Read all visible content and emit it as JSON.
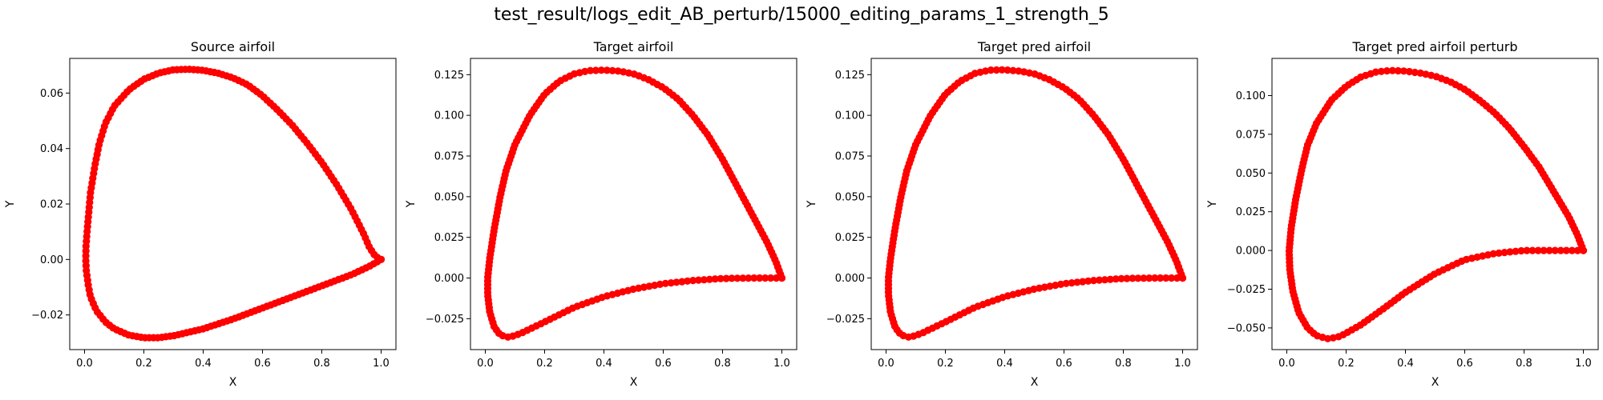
{
  "figure": {
    "suptitle": "test_result/logs_edit_AB_perturb/15000_editing_params_1_strength_5"
  },
  "style": {
    "marker_color": "#ff0000",
    "line_color": "#ff0000",
    "axes_color": "#000000"
  },
  "chart_data": [
    {
      "type": "scatter",
      "title": "Source airfoil",
      "xlabel": "X",
      "ylabel": "Y",
      "xlim": [
        -0.05,
        1.05
      ],
      "ylim": [
        -0.0325,
        0.0725
      ],
      "xticks": [
        0.0,
        0.2,
        0.4,
        0.6,
        0.8,
        1.0
      ],
      "xtick_labels": [
        "0.0",
        "0.2",
        "0.4",
        "0.6",
        "0.8",
        "1.0"
      ],
      "yticks": [
        -0.02,
        0.0,
        0.02,
        0.04,
        0.06
      ],
      "ytick_labels": [
        "−0.02",
        "0.00",
        "0.02",
        "0.04",
        "0.06"
      ],
      "grid": false,
      "series": [
        {
          "marker": "circle",
          "upper": [
            [
              1.0,
              0.0
            ],
            [
              0.98,
              0.0012
            ],
            [
              0.96,
              0.0045
            ],
            [
              0.94,
              0.0095
            ],
            [
              0.9,
              0.018
            ],
            [
              0.85,
              0.027
            ],
            [
              0.8,
              0.035
            ],
            [
              0.75,
              0.042
            ],
            [
              0.7,
              0.0485
            ],
            [
              0.65,
              0.054
            ],
            [
              0.6,
              0.059
            ],
            [
              0.55,
              0.063
            ],
            [
              0.5,
              0.0655
            ],
            [
              0.45,
              0.0672
            ],
            [
              0.4,
              0.0682
            ],
            [
              0.35,
              0.0686
            ],
            [
              0.3,
              0.0684
            ],
            [
              0.25,
              0.0672
            ],
            [
              0.2,
              0.065
            ],
            [
              0.15,
              0.0612
            ],
            [
              0.1,
              0.0553
            ],
            [
              0.07,
              0.049
            ],
            [
              0.05,
              0.042
            ],
            [
              0.035,
              0.034
            ],
            [
              0.02,
              0.024
            ],
            [
              0.01,
              0.012
            ],
            [
              0.005,
              0.005
            ],
            [
              0.004,
              0.0
            ]
          ],
          "lower": [
            [
              0.004,
              0.0
            ],
            [
              0.006,
              -0.004
            ],
            [
              0.012,
              -0.009
            ],
            [
              0.02,
              -0.0135
            ],
            [
              0.04,
              -0.0185
            ],
            [
              0.07,
              -0.0225
            ],
            [
              0.1,
              -0.025
            ],
            [
              0.15,
              -0.0273
            ],
            [
              0.2,
              -0.0282
            ],
            [
              0.25,
              -0.0282
            ],
            [
              0.3,
              -0.0275
            ],
            [
              0.4,
              -0.025
            ],
            [
              0.5,
              -0.0215
            ],
            [
              0.6,
              -0.0175
            ],
            [
              0.7,
              -0.0135
            ],
            [
              0.8,
              -0.0095
            ],
            [
              0.9,
              -0.0055
            ],
            [
              0.96,
              -0.0025
            ],
            [
              1.0,
              0.0
            ]
          ],
          "count": 200
        }
      ]
    },
    {
      "type": "scatter",
      "title": "Target airfoil",
      "xlabel": "X",
      "ylabel": "Y",
      "xlim": [
        -0.05,
        1.05
      ],
      "ylim": [
        -0.044,
        0.135
      ],
      "xticks": [
        0.0,
        0.2,
        0.4,
        0.6,
        0.8,
        1.0
      ],
      "xtick_labels": [
        "0.0",
        "0.2",
        "0.4",
        "0.6",
        "0.8",
        "1.0"
      ],
      "yticks": [
        -0.025,
        0.0,
        0.025,
        0.05,
        0.075,
        0.1,
        0.125
      ],
      "ytick_labels": [
        "−0.025",
        "0.000",
        "0.025",
        "0.050",
        "0.075",
        "0.100",
        "0.125"
      ],
      "grid": false,
      "series": [
        {
          "marker": "circle",
          "upper": [
            [
              1.0,
              0.0
            ],
            [
              0.98,
              0.01
            ],
            [
              0.95,
              0.022
            ],
            [
              0.9,
              0.039
            ],
            [
              0.85,
              0.056
            ],
            [
              0.8,
              0.073
            ],
            [
              0.75,
              0.088
            ],
            [
              0.7,
              0.1
            ],
            [
              0.65,
              0.11
            ],
            [
              0.6,
              0.117
            ],
            [
              0.55,
              0.122
            ],
            [
              0.5,
              0.1255
            ],
            [
              0.45,
              0.1272
            ],
            [
              0.4,
              0.1278
            ],
            [
              0.35,
              0.1275
            ],
            [
              0.3,
              0.1255
            ],
            [
              0.25,
              0.121
            ],
            [
              0.2,
              0.113
            ],
            [
              0.15,
              0.1
            ],
            [
              0.1,
              0.082
            ],
            [
              0.07,
              0.066
            ],
            [
              0.05,
              0.05
            ],
            [
              0.03,
              0.03
            ],
            [
              0.015,
              0.012
            ],
            [
              0.008,
              0.0
            ],
            [
              0.008,
              -0.01
            ]
          ],
          "lower": [
            [
              0.008,
              -0.01
            ],
            [
              0.015,
              -0.021
            ],
            [
              0.03,
              -0.03
            ],
            [
              0.05,
              -0.035
            ],
            [
              0.08,
              -0.0365
            ],
            [
              0.12,
              -0.034
            ],
            [
              0.2,
              -0.027
            ],
            [
              0.3,
              -0.018
            ],
            [
              0.4,
              -0.0115
            ],
            [
              0.5,
              -0.0068
            ],
            [
              0.6,
              -0.0035
            ],
            [
              0.7,
              -0.0015
            ],
            [
              0.8,
              -0.0003
            ],
            [
              0.9,
              0.0
            ],
            [
              1.0,
              0.0
            ]
          ],
          "count": 200
        }
      ]
    },
    {
      "type": "scatter",
      "title": "Target pred airfoil",
      "xlabel": "X",
      "ylabel": "Y",
      "xlim": [
        -0.05,
        1.05
      ],
      "ylim": [
        -0.044,
        0.135
      ],
      "xticks": [
        0.0,
        0.2,
        0.4,
        0.6,
        0.8,
        1.0
      ],
      "xtick_labels": [
        "0.0",
        "0.2",
        "0.4",
        "0.6",
        "0.8",
        "1.0"
      ],
      "yticks": [
        -0.025,
        0.0,
        0.025,
        0.05,
        0.075,
        0.1,
        0.125
      ],
      "ytick_labels": [
        "−0.025",
        "0.000",
        "0.025",
        "0.050",
        "0.075",
        "0.100",
        "0.125"
      ],
      "grid": false,
      "series": [
        {
          "marker": "circle",
          "upper": [
            [
              1.0,
              0.0
            ],
            [
              0.98,
              0.01
            ],
            [
              0.95,
              0.022
            ],
            [
              0.9,
              0.039
            ],
            [
              0.85,
              0.056
            ],
            [
              0.8,
              0.073
            ],
            [
              0.75,
              0.088
            ],
            [
              0.7,
              0.1
            ],
            [
              0.65,
              0.11
            ],
            [
              0.6,
              0.117
            ],
            [
              0.55,
              0.122
            ],
            [
              0.5,
              0.1255
            ],
            [
              0.45,
              0.1272
            ],
            [
              0.4,
              0.128
            ],
            [
              0.35,
              0.1278
            ],
            [
              0.3,
              0.1258
            ],
            [
              0.25,
              0.121
            ],
            [
              0.2,
              0.113
            ],
            [
              0.15,
              0.1
            ],
            [
              0.1,
              0.082
            ],
            [
              0.07,
              0.066
            ],
            [
              0.05,
              0.05
            ],
            [
              0.03,
              0.03
            ],
            [
              0.015,
              0.012
            ],
            [
              0.008,
              0.0
            ],
            [
              0.008,
              -0.01
            ]
          ],
          "lower": [
            [
              0.008,
              -0.01
            ],
            [
              0.015,
              -0.021
            ],
            [
              0.03,
              -0.03
            ],
            [
              0.05,
              -0.035
            ],
            [
              0.08,
              -0.0365
            ],
            [
              0.12,
              -0.034
            ],
            [
              0.2,
              -0.027
            ],
            [
              0.3,
              -0.018
            ],
            [
              0.4,
              -0.0115
            ],
            [
              0.5,
              -0.0068
            ],
            [
              0.6,
              -0.0035
            ],
            [
              0.7,
              -0.0015
            ],
            [
              0.8,
              -0.0003
            ],
            [
              0.9,
              0.0
            ],
            [
              1.0,
              0.0
            ]
          ],
          "count": 200
        }
      ]
    },
    {
      "type": "scatter",
      "title": "Target pred airfoil perturb",
      "xlabel": "X",
      "ylabel": "Y",
      "xlim": [
        -0.05,
        1.05
      ],
      "ylim": [
        -0.064,
        0.124
      ],
      "xticks": [
        0.0,
        0.2,
        0.4,
        0.6,
        0.8,
        1.0
      ],
      "xtick_labels": [
        "0.0",
        "0.2",
        "0.4",
        "0.6",
        "0.8",
        "1.0"
      ],
      "yticks": [
        -0.05,
        -0.025,
        0.0,
        0.025,
        0.05,
        0.075,
        0.1
      ],
      "ytick_labels": [
        "−0.050",
        "−0.025",
        "0.000",
        "0.025",
        "0.050",
        "0.075",
        "0.100"
      ],
      "grid": false,
      "series": [
        {
          "marker": "circle",
          "upper": [
            [
              1.0,
              0.0
            ],
            [
              0.98,
              0.01
            ],
            [
              0.95,
              0.022
            ],
            [
              0.9,
              0.038
            ],
            [
              0.85,
              0.054
            ],
            [
              0.8,
              0.067
            ],
            [
              0.75,
              0.079
            ],
            [
              0.7,
              0.089
            ],
            [
              0.65,
              0.097
            ],
            [
              0.6,
              0.104
            ],
            [
              0.55,
              0.109
            ],
            [
              0.5,
              0.1125
            ],
            [
              0.45,
              0.1145
            ],
            [
              0.4,
              0.1158
            ],
            [
              0.35,
              0.1162
            ],
            [
              0.3,
              0.1152
            ],
            [
              0.25,
              0.112
            ],
            [
              0.2,
              0.106
            ],
            [
              0.15,
              0.097
            ],
            [
              0.1,
              0.082
            ],
            [
              0.07,
              0.068
            ],
            [
              0.05,
              0.052
            ],
            [
              0.03,
              0.033
            ],
            [
              0.015,
              0.015
            ],
            [
              0.008,
              0.0
            ],
            [
              0.01,
              -0.012
            ]
          ],
          "lower": [
            [
              0.01,
              -0.012
            ],
            [
              0.02,
              -0.026
            ],
            [
              0.04,
              -0.04
            ],
            [
              0.07,
              -0.05
            ],
            [
              0.1,
              -0.055
            ],
            [
              0.14,
              -0.057
            ],
            [
              0.18,
              -0.0555
            ],
            [
              0.25,
              -0.048
            ],
            [
              0.33,
              -0.037
            ],
            [
              0.4,
              -0.027
            ],
            [
              0.5,
              -0.015
            ],
            [
              0.6,
              -0.006
            ],
            [
              0.7,
              -0.002
            ],
            [
              0.8,
              0.0
            ],
            [
              0.9,
              0.0
            ],
            [
              1.0,
              0.0
            ]
          ],
          "count": 200
        }
      ]
    }
  ]
}
